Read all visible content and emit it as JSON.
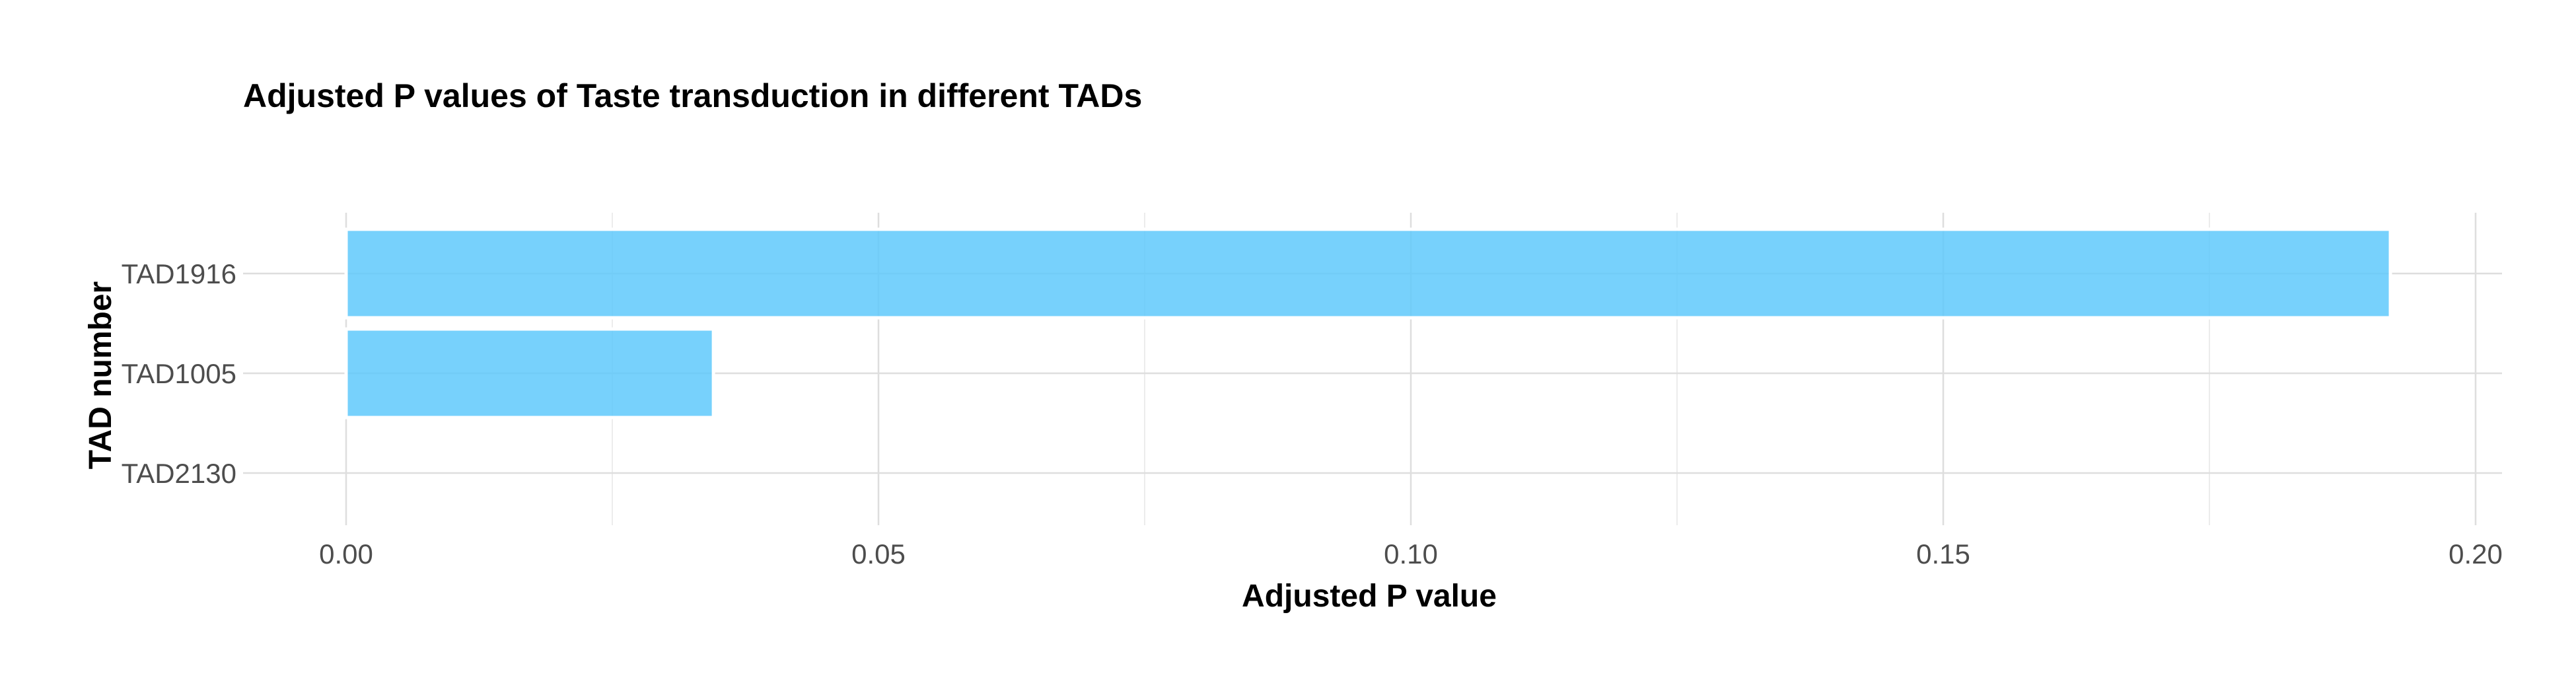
{
  "chart_data": {
    "type": "bar",
    "orientation": "horizontal",
    "title": "Adjusted P values of Taste transduction in different TADs",
    "xlabel": "Adjusted P value",
    "ylabel": "TAD number",
    "categories": [
      "TAD1916",
      "TAD1005",
      "TAD2130"
    ],
    "values": [
      0.192,
      0.0345,
      0
    ],
    "xlim": [
      0,
      0.2
    ],
    "xticks": [
      "0.00",
      "0.05",
      "0.10",
      "0.15",
      "0.20"
    ],
    "grid": true,
    "bar_color": "#5BC8FB",
    "bar_opacity": 0.83
  }
}
